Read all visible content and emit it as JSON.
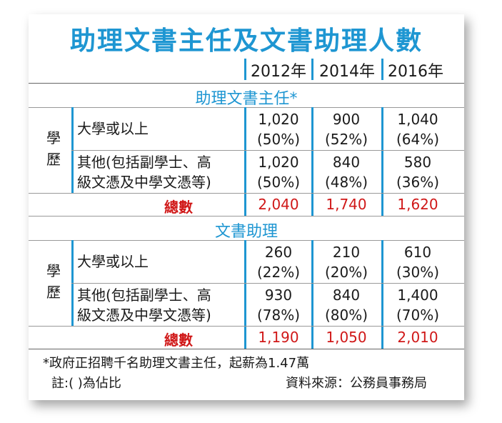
{
  "title": "助理文書主任及文書助理人數",
  "years": [
    "2012年",
    "2014年",
    "2016年"
  ],
  "sections": [
    {
      "name": "助理文書主任*",
      "axis_label": [
        "學",
        "歷"
      ],
      "rows": [
        {
          "label_line1": "大學或以上",
          "label_line2": "",
          "values": [
            [
              "1,020",
              "(50%)"
            ],
            [
              "900",
              "(52%)"
            ],
            [
              "1,040",
              "(64%)"
            ]
          ]
        },
        {
          "label_line1": "其他(包括副學士、高",
          "label_line2": "級文憑及中學文憑等)",
          "values": [
            [
              "1,020",
              "(50%)"
            ],
            [
              "840",
              "(48%)"
            ],
            [
              "580",
              "(36%)"
            ]
          ]
        }
      ],
      "total_label": "總數",
      "totals": [
        "2,040",
        "1,740",
        "1,620"
      ]
    },
    {
      "name": "文書助理",
      "axis_label": [
        "學",
        "歷"
      ],
      "rows": [
        {
          "label_line1": "大學或以上",
          "label_line2": "",
          "values": [
            [
              "260",
              "(22%)"
            ],
            [
              "210",
              "(20%)"
            ],
            [
              "610",
              "(30%)"
            ]
          ]
        },
        {
          "label_line1": "其他(包括副學士、高",
          "label_line2": "級文憑及中學文憑等)",
          "values": [
            [
              "930",
              "(78%)"
            ],
            [
              "840",
              "(80%)"
            ],
            [
              "1,400",
              "(70%)"
            ]
          ]
        }
      ],
      "total_label": "總數",
      "totals": [
        "1,190",
        "1,050",
        "2,010"
      ]
    }
  ],
  "footnote": "*政府正招聘千名助理文書主任，起薪為1.47萬",
  "note": "註:( )為佔比",
  "source": "資料來源：公務員事務局",
  "colors": {
    "accent": "#1e96d2",
    "total": "#d01818"
  }
}
